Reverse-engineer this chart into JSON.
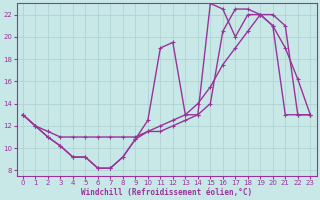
{
  "xlabel": "Windchill (Refroidissement éolien,°C)",
  "background_color": "#c8e8e8",
  "grid_color": "#a8c8c8",
  "line_color": "#993399",
  "xlim": [
    -0.5,
    23.5
  ],
  "ylim": [
    7.5,
    23.0
  ],
  "yticks": [
    8,
    10,
    12,
    14,
    16,
    18,
    20,
    22
  ],
  "xticks": [
    0,
    1,
    2,
    3,
    4,
    5,
    6,
    7,
    8,
    9,
    10,
    11,
    12,
    13,
    14,
    15,
    16,
    17,
    18,
    19,
    20,
    21,
    22,
    23
  ],
  "line1_x": [
    0,
    1,
    2,
    3,
    4,
    5,
    6,
    7,
    8,
    9,
    10,
    11,
    12,
    13,
    14,
    15,
    16,
    17,
    18,
    19,
    20,
    21,
    22,
    23
  ],
  "line1_y": [
    13.0,
    12.0,
    11.0,
    10.2,
    9.2,
    9.2,
    8.2,
    8.2,
    9.2,
    10.8,
    12.5,
    19.0,
    19.5,
    13.0,
    13.0,
    23.0,
    22.5,
    20.0,
    22.0,
    22.0,
    21.0,
    19.0,
    16.2,
    13.0
  ],
  "line2_x": [
    0,
    1,
    2,
    3,
    4,
    5,
    6,
    7,
    8,
    9,
    10,
    11,
    12,
    13,
    14,
    15,
    16,
    17,
    18,
    19,
    20,
    21,
    22,
    23
  ],
  "line2_y": [
    13.0,
    12.0,
    11.5,
    11.0,
    11.0,
    11.0,
    11.0,
    11.0,
    11.0,
    11.0,
    11.5,
    12.0,
    12.5,
    13.0,
    14.0,
    15.5,
    17.5,
    19.0,
    20.5,
    22.0,
    22.0,
    21.0,
    13.0,
    13.0
  ],
  "line3_x": [
    0,
    1,
    2,
    3,
    4,
    5,
    6,
    7,
    8,
    9,
    10,
    11,
    12,
    13,
    14,
    15,
    16,
    17,
    18,
    19,
    20,
    21,
    22,
    23
  ],
  "line3_y": [
    13.0,
    12.0,
    11.0,
    10.2,
    9.2,
    9.2,
    8.2,
    8.2,
    9.2,
    10.8,
    11.5,
    11.5,
    12.0,
    12.5,
    13.0,
    14.0,
    20.5,
    22.5,
    22.5,
    22.0,
    21.0,
    13.0,
    13.0,
    13.0
  ]
}
